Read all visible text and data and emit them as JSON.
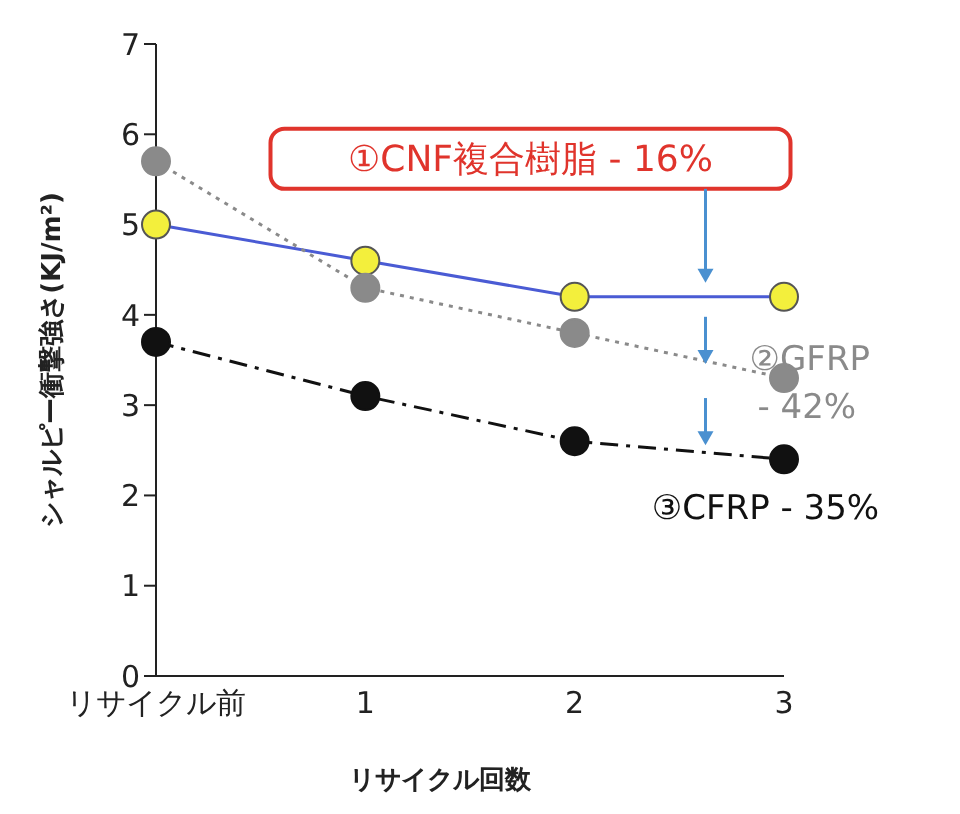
{
  "chart_data": {
    "type": "line",
    "xlabel": "リサイクル回数",
    "ylabel": "シャルピー衝撃強さ(KJ/m²)",
    "categories": [
      "リサイクル前",
      "1",
      "2",
      "3"
    ],
    "ylim": [
      0,
      7
    ],
    "yticks": [
      0,
      1,
      2,
      3,
      4,
      5,
      6,
      7
    ],
    "grid": false,
    "marker": "circle",
    "series": [
      {
        "name": "①CNF複合樹脂 - 16%",
        "color": "#4a5bd4",
        "colors": [
          "#f3ef3c",
          "#f3ef3c",
          "#f3ef3c",
          "#f3ef3c"
        ],
        "line_style": "solid",
        "values": [
          5.0,
          4.6,
          4.2,
          4.2
        ]
      },
      {
        "name": "②GFRP - 42%",
        "color": "#8a8a8a",
        "line_style": "dotted",
        "values": [
          5.7,
          4.3,
          3.8,
          3.3
        ]
      },
      {
        "name": "③CFRP - 35%",
        "color": "#111111",
        "line_style": "dashed",
        "values": [
          3.7,
          3.1,
          2.6,
          2.4
        ]
      }
    ]
  }
}
